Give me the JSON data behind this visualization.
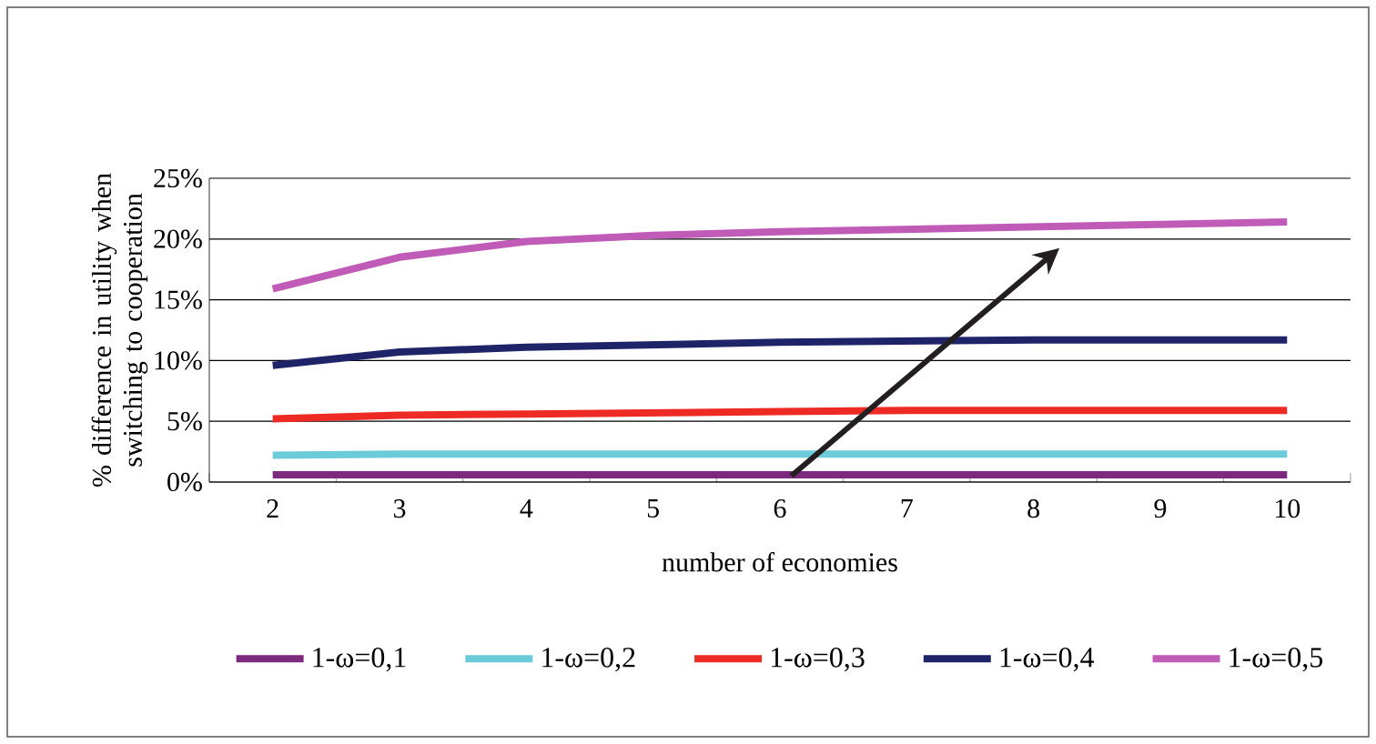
{
  "chart_data": {
    "type": "line",
    "xlabel": "number of economies",
    "ylabel": "% difference in utility when switching to cooperation",
    "categories": [
      "2",
      "3",
      "4",
      "5",
      "6",
      "7",
      "8",
      "9",
      "10"
    ],
    "series": [
      {
        "name": "1-ω=0,1",
        "color": "#7b2a7e",
        "values": [
          0.6,
          0.6,
          0.6,
          0.6,
          0.6,
          0.6,
          0.6,
          0.6,
          0.6
        ]
      },
      {
        "name": "1-ω=0,2",
        "color": "#6ccbd8",
        "values": [
          2.2,
          2.3,
          2.3,
          2.3,
          2.3,
          2.3,
          2.3,
          2.3,
          2.3
        ]
      },
      {
        "name": "1-ω=0,3",
        "color": "#ee2a24",
        "values": [
          5.2,
          5.5,
          5.6,
          5.7,
          5.8,
          5.9,
          5.9,
          5.9,
          5.9
        ]
      },
      {
        "name": "1-ω=0,4",
        "color": "#1f2468",
        "values": [
          9.6,
          10.7,
          11.1,
          11.3,
          11.5,
          11.6,
          11.7,
          11.7,
          11.7
        ]
      },
      {
        "name": "1-ω=0,5",
        "color": "#c05cb8",
        "values": [
          15.9,
          18.5,
          19.8,
          20.3,
          20.6,
          20.8,
          21.0,
          21.2,
          21.4
        ]
      }
    ],
    "ylim": [
      0,
      25
    ],
    "yticks": [
      {
        "value": 0,
        "label": "0%"
      },
      {
        "value": 5,
        "label": "5%"
      },
      {
        "value": 10,
        "label": "10%"
      },
      {
        "value": 15,
        "label": "15%"
      },
      {
        "value": 20,
        "label": "20%"
      },
      {
        "value": 25,
        "label": "25%"
      }
    ],
    "grid": "y",
    "legend": "bottom",
    "marker": "none",
    "line_style": "solid"
  }
}
